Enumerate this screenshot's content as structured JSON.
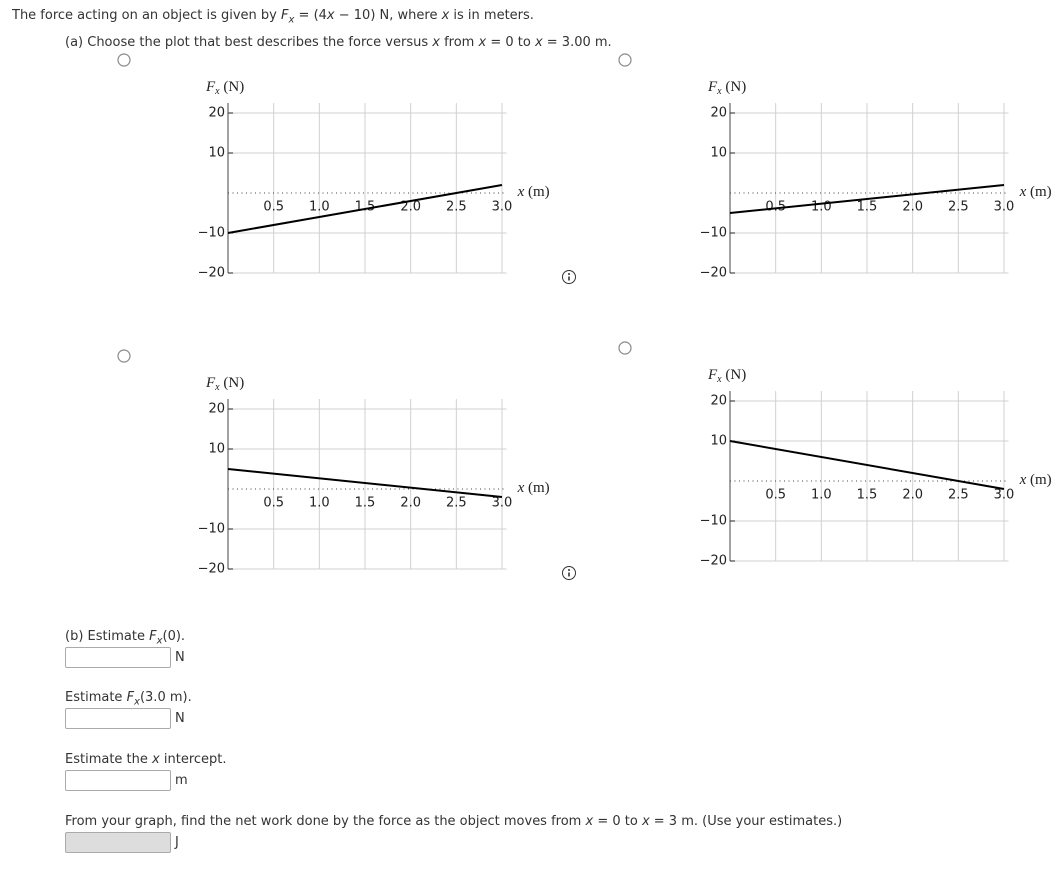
{
  "question": [
    "The force acting on an object is given by ",
    "F",
    "x",
    " = (4",
    "x",
    " − 10) N, where ",
    "x",
    " is in meters."
  ],
  "part_a": [
    "(a) Choose the plot that best describes the force versus ",
    "x",
    " from ",
    "x",
    " = 0 to ",
    "x",
    " = 3.00 m."
  ],
  "chart_data": [
    {
      "type": "line",
      "ylabel": [
        "F",
        "x",
        " (N)"
      ],
      "xlabel": [
        "x",
        " (m)"
      ],
      "x": [
        0,
        3
      ],
      "values": [
        -10,
        2
      ],
      "color": "#000000",
      "xlim": [
        0,
        3.05
      ],
      "ylim": [
        -20,
        22.5
      ],
      "grid": true,
      "xticks": [
        0.5,
        {
          "value": 1,
          "label": "1.0"
        },
        1.5,
        {
          "value": 2,
          "label": "2.0"
        },
        2.5,
        {
          "value": 3,
          "label": "3.0"
        }
      ],
      "yticks": [
        20,
        10,
        {
          "value": -10,
          "label": "−10"
        },
        {
          "value": -20,
          "label": "−20"
        }
      ]
    },
    {
      "type": "line",
      "ylabel": [
        "F",
        "x",
        " (N)"
      ],
      "xlabel": [
        "x",
        " (m)"
      ],
      "x": [
        0,
        3
      ],
      "values": [
        -5,
        2
      ],
      "color": "#000000",
      "xlim": [
        0,
        3.05
      ],
      "ylim": [
        -20,
        22.5
      ],
      "grid": true,
      "xticks": [
        0.5,
        {
          "value": 1,
          "label": "1.0"
        },
        1.5,
        {
          "value": 2,
          "label": "2.0"
        },
        2.5,
        {
          "value": 3,
          "label": "3.0"
        }
      ],
      "yticks": [
        20,
        10,
        {
          "value": -10,
          "label": "−10"
        },
        {
          "value": -20,
          "label": "−20"
        }
      ]
    },
    {
      "type": "line",
      "ylabel": [
        "F",
        "x",
        " (N)"
      ],
      "xlabel": [
        "x",
        " (m)"
      ],
      "x": [
        0,
        3
      ],
      "values": [
        5,
        -2
      ],
      "color": "#000000",
      "xlim": [
        0,
        3.05
      ],
      "ylim": [
        -20,
        22.5
      ],
      "grid": true,
      "xticks": [
        0.5,
        {
          "value": 1,
          "label": "1.0"
        },
        1.5,
        {
          "value": 2,
          "label": "2.0"
        },
        2.5,
        {
          "value": 3,
          "label": "3.0"
        }
      ],
      "yticks": [
        20,
        10,
        {
          "value": -10,
          "label": "−10"
        },
        {
          "value": -20,
          "label": "−20"
        }
      ]
    },
    {
      "type": "line",
      "ylabel": [
        "F",
        "x",
        " (N)"
      ],
      "xlabel": [
        "x",
        " (m)"
      ],
      "x": [
        0,
        3
      ],
      "values": [
        10,
        -2
      ],
      "color": "#000000",
      "xlim": [
        0,
        3.05
      ],
      "ylim": [
        -20,
        22.5
      ],
      "grid": true,
      "xticks": [
        0.5,
        {
          "value": 1,
          "label": "1.0"
        },
        1.5,
        {
          "value": 2,
          "label": "2.0"
        },
        2.5,
        {
          "value": 3,
          "label": "3.0"
        }
      ],
      "yticks": [
        20,
        10,
        {
          "value": -10,
          "label": "−10"
        },
        {
          "value": -20,
          "label": "−20"
        }
      ]
    }
  ],
  "part_b": [
    {
      "prompt": [
        "(b) Estimate ",
        "F",
        "x",
        "(0)."
      ],
      "unit": "N"
    },
    {
      "prompt": [
        "Estimate ",
        "F",
        "x",
        "(3.0 m)."
      ],
      "unit": "N"
    },
    {
      "prompt": [
        "Estimate the ",
        "x",
        " intercept."
      ],
      "unit": "m"
    }
  ],
  "work": {
    "prompt": [
      "From your graph, find the net work done by the force as the object moves from ",
      "x",
      " = 0 to ",
      "x",
      " = 3 m. (Use your estimates.)"
    ],
    "unit": "J"
  }
}
